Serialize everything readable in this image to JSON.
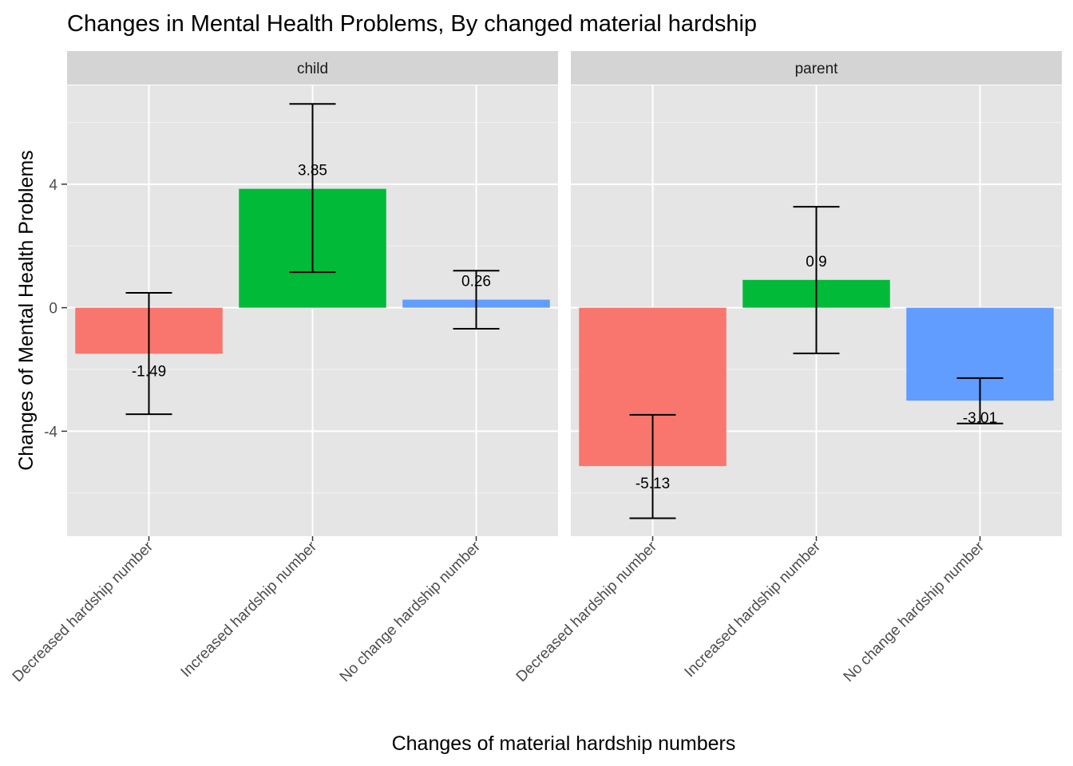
{
  "chart_data": {
    "type": "bar",
    "title": "Changes in Mental Health Problems, By changed material hardship",
    "xlabel": "Changes of material hardship numbers",
    "ylabel": "Changes of Mental Health Problems",
    "ylim": [
      -7.4,
      7.2
    ],
    "yticks": [
      -4,
      0,
      4
    ],
    "categories": [
      "Decreased hardship number",
      "Increased hardship number",
      "No change hardship number"
    ],
    "colors": [
      "#F8766D",
      "#00BA38",
      "#619CFF"
    ],
    "panel_background": "#E5E5E5",
    "strip_background": "#D4D4D4",
    "grid": true,
    "legend": "none",
    "facets": [
      {
        "name": "child",
        "values": [
          -1.49,
          3.85,
          0.26
        ],
        "labels": [
          "-1.49",
          "3.85",
          "0.26"
        ],
        "error_low": [
          -3.45,
          1.15,
          -0.68
        ],
        "error_high": [
          0.48,
          6.6,
          1.2
        ]
      },
      {
        "name": "parent",
        "values": [
          -5.13,
          0.9,
          -3.01
        ],
        "labels": [
          "-5.13",
          "0.9",
          "-3.01"
        ],
        "error_low": [
          -6.82,
          -1.48,
          -3.75
        ],
        "error_high": [
          -3.47,
          3.27,
          -2.28
        ]
      }
    ]
  }
}
